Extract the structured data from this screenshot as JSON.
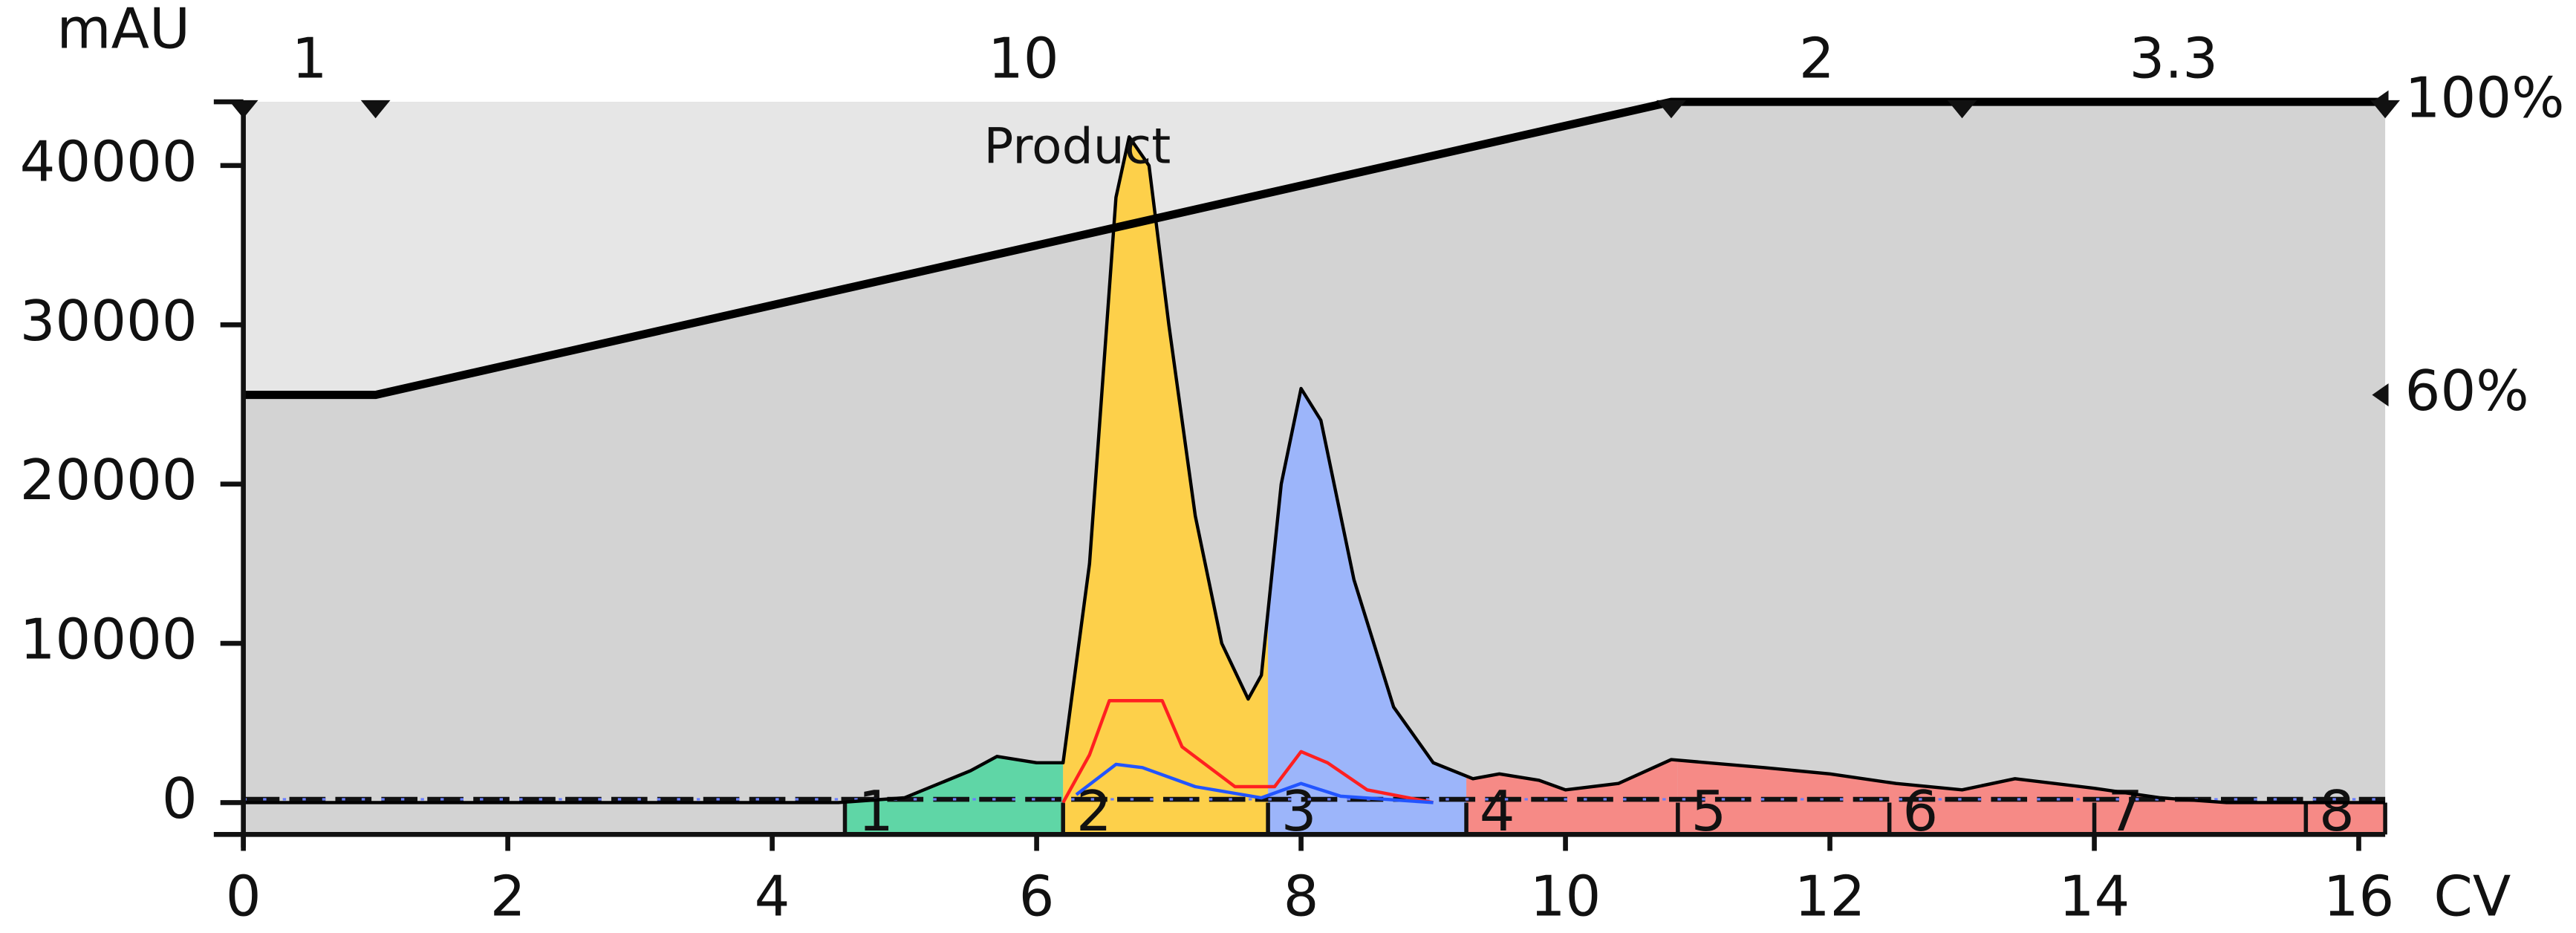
{
  "chart_data": {
    "type": "chromatogram",
    "x_label": "CV",
    "y_label": "mAU",
    "xlim": [
      0,
      16.2
    ],
    "xticks": [
      0,
      2,
      4,
      6,
      8,
      10,
      12,
      14,
      16
    ],
    "ylim": [
      -2000,
      44000
    ],
    "yticks": [
      0,
      10000,
      20000,
      30000,
      40000
    ],
    "y2lim": [
      0,
      100
    ],
    "y2ticks": [
      {
        "value": 60,
        "label": "60%"
      },
      {
        "value": 100,
        "label": "100%"
      }
    ],
    "phase_markers": [
      0,
      1,
      10.8,
      13,
      16.2
    ],
    "phase_labels": [
      "1",
      "10",
      "2",
      "3.3"
    ],
    "annotations": [
      {
        "text": "Product",
        "x": 5.6,
        "y": 41000
      }
    ],
    "fractions": {
      "labels": [
        "1",
        "2",
        "3",
        "4",
        "5",
        "6",
        "7",
        "8"
      ],
      "edges": [
        4.55,
        6.2,
        7.75,
        9.25,
        10.85,
        12.45,
        14.0,
        15.6,
        16.2
      ],
      "colors": [
        "#5fd6a6",
        "#fdd04a",
        "#9cb5fa",
        "#f68a86",
        "#f68a86",
        "#f68a86",
        "#f68a86",
        "#f68a86"
      ]
    },
    "series": [
      {
        "color": "#000000",
        "fill": true,
        "x": [
          0,
          4.5,
          5.0,
          5.5,
          5.7,
          6.0,
          6.2,
          6.4,
          6.6,
          6.7,
          6.85,
          7.0,
          7.2,
          7.4,
          7.6,
          7.7,
          7.85,
          8.0,
          8.15,
          8.4,
          8.7,
          9.0,
          9.3,
          9.5,
          9.8,
          10.0,
          10.4,
          10.8,
          11.5,
          12.0,
          12.5,
          13.0,
          13.4,
          14.0,
          14.5,
          15.0,
          16.2
        ],
        "values": [
          0,
          0,
          300,
          2000,
          2900,
          2500,
          2500,
          15000,
          38000,
          41800,
          40000,
          30000,
          18000,
          10000,
          6500,
          8000,
          20000,
          26000,
          24000,
          14000,
          6000,
          2500,
          1500,
          1800,
          1400,
          800,
          1200,
          2700,
          2200,
          1800,
          1200,
          800,
          1500,
          900,
          300,
          0,
          0
        ]
      },
      {
        "color": "#ff2020",
        "x": [
          6.2,
          6.4,
          6.55,
          6.95,
          7.1,
          7.5,
          7.8,
          8.0,
          8.2,
          8.5,
          9.0
        ],
        "values": [
          0,
          3000,
          6400,
          6400,
          3500,
          1000,
          1000,
          3200,
          2500,
          800,
          0
        ]
      },
      {
        "color": "#2255ff",
        "x": [
          6.3,
          6.6,
          6.8,
          7.2,
          7.7,
          8.0,
          8.3,
          9.0
        ],
        "values": [
          500,
          2400,
          2200,
          1000,
          300,
          1200,
          400,
          0
        ]
      },
      {
        "color": "#000000",
        "axis": "y2",
        "width": 5,
        "x": [
          0,
          1,
          10.8,
          16.2
        ],
        "values": [
          60,
          60,
          100,
          100
        ]
      }
    ]
  }
}
